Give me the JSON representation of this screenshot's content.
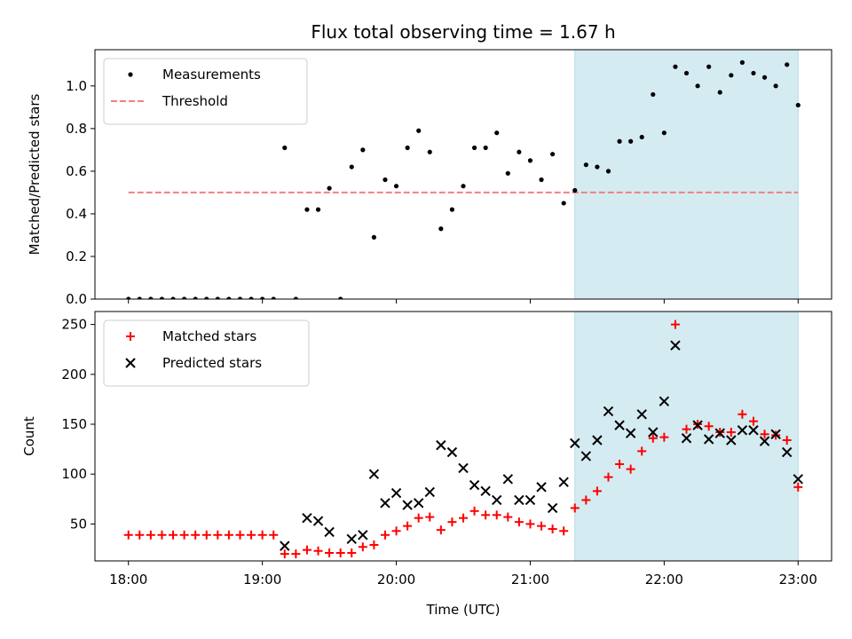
{
  "figure": {
    "title": "Flux total observing time = 1.67 h",
    "xlabel": "Time (UTC)",
    "x_tick_labels": [
      "18:00",
      "19:00",
      "20:00",
      "21:00",
      "22:00",
      "23:00"
    ],
    "highlight_color": "#d4ebf1"
  },
  "chart_data": [
    {
      "type": "scatter",
      "ylabel": "Matched/Predicted stars",
      "xlim": [
        "17:45",
        "23:15"
      ],
      "ylim": [
        0,
        1.17
      ],
      "y_ticks": [
        0.0,
        0.2,
        0.4,
        0.6,
        0.8,
        1.0
      ],
      "y_tick_labels": [
        "0.0",
        "0.2",
        "0.4",
        "0.6",
        "0.8",
        "1.0"
      ],
      "x_ticks": [
        "18:00",
        "19:00",
        "20:00",
        "21:00",
        "22:00",
        "23:00"
      ],
      "highlight_span": [
        "21:20",
        "23:00"
      ],
      "legend_position": "upper-left",
      "threshold": {
        "name": "Threshold",
        "value": 0.5,
        "x_range": [
          "18:00",
          "23:00"
        ],
        "color": "#f08080",
        "style": "dashed"
      },
      "series": [
        {
          "name": "Measurements",
          "color": "#000000",
          "marker": "dot",
          "points": [
            [
              "18:00",
              0
            ],
            [
              "18:05",
              0
            ],
            [
              "18:10",
              0
            ],
            [
              "18:15",
              0
            ],
            [
              "18:20",
              0
            ],
            [
              "18:25",
              0
            ],
            [
              "18:30",
              0
            ],
            [
              "18:35",
              0
            ],
            [
              "18:40",
              0
            ],
            [
              "18:45",
              0
            ],
            [
              "18:50",
              0
            ],
            [
              "18:55",
              0
            ],
            [
              "19:00",
              0
            ],
            [
              "19:05",
              0
            ],
            [
              "19:10",
              0.71
            ],
            [
              "19:15",
              0
            ],
            [
              "19:20",
              0.42
            ],
            [
              "19:25",
              0.42
            ],
            [
              "19:30",
              0.52
            ],
            [
              "19:35",
              0
            ],
            [
              "19:40",
              0.62
            ],
            [
              "19:45",
              0.7
            ],
            [
              "19:50",
              0.29
            ],
            [
              "19:55",
              0.56
            ],
            [
              "20:00",
              0.53
            ],
            [
              "20:05",
              0.71
            ],
            [
              "20:10",
              0.79
            ],
            [
              "20:15",
              0.69
            ],
            [
              "20:20",
              0.33
            ],
            [
              "20:25",
              0.42
            ],
            [
              "20:30",
              0.53
            ],
            [
              "20:35",
              0.71
            ],
            [
              "20:40",
              0.71
            ],
            [
              "20:45",
              0.78
            ],
            [
              "20:50",
              0.59
            ],
            [
              "20:55",
              0.69
            ],
            [
              "21:00",
              0.65
            ],
            [
              "21:05",
              0.56
            ],
            [
              "21:10",
              0.68
            ],
            [
              "21:15",
              0.45
            ],
            [
              "21:20",
              0.51
            ],
            [
              "21:25",
              0.63
            ],
            [
              "21:30",
              0.62
            ],
            [
              "21:35",
              0.6
            ],
            [
              "21:40",
              0.74
            ],
            [
              "21:45",
              0.74
            ],
            [
              "21:50",
              0.76
            ],
            [
              "21:55",
              0.96
            ],
            [
              "22:00",
              0.78
            ],
            [
              "22:05",
              1.09
            ],
            [
              "22:10",
              1.06
            ],
            [
              "22:15",
              1.0
            ],
            [
              "22:20",
              1.09
            ],
            [
              "22:25",
              0.97
            ],
            [
              "22:30",
              1.05
            ],
            [
              "22:35",
              1.11
            ],
            [
              "22:40",
              1.06
            ],
            [
              "22:45",
              1.04
            ],
            [
              "22:50",
              1.0
            ],
            [
              "22:55",
              1.1
            ],
            [
              "23:00",
              0.91
            ]
          ]
        }
      ]
    },
    {
      "type": "scatter",
      "ylabel": "Count",
      "xlim": [
        "17:45",
        "23:15"
      ],
      "ylim": [
        13,
        263
      ],
      "y_ticks": [
        50,
        100,
        150,
        200,
        250
      ],
      "y_tick_labels": [
        "50",
        "100",
        "150",
        "200",
        "250"
      ],
      "x_ticks": [
        "18:00",
        "19:00",
        "20:00",
        "21:00",
        "22:00",
        "23:00"
      ],
      "highlight_span": [
        "21:20",
        "23:00"
      ],
      "legend_position": "upper-left",
      "series": [
        {
          "name": "Matched stars",
          "color": "#ff0000",
          "marker": "plus",
          "points": [
            [
              "18:00",
              39
            ],
            [
              "18:05",
              39
            ],
            [
              "18:10",
              39
            ],
            [
              "18:15",
              39
            ],
            [
              "18:20",
              39
            ],
            [
              "18:25",
              39
            ],
            [
              "18:30",
              39
            ],
            [
              "18:35",
              39
            ],
            [
              "18:40",
              39
            ],
            [
              "18:45",
              39
            ],
            [
              "18:50",
              39
            ],
            [
              "18:55",
              39
            ],
            [
              "19:00",
              39
            ],
            [
              "19:05",
              39
            ],
            [
              "19:10",
              20
            ],
            [
              "19:15",
              20
            ],
            [
              "19:20",
              24
            ],
            [
              "19:25",
              23
            ],
            [
              "19:30",
              21
            ],
            [
              "19:35",
              21
            ],
            [
              "19:40",
              21
            ],
            [
              "19:45",
              27
            ],
            [
              "19:50",
              29
            ],
            [
              "19:55",
              39
            ],
            [
              "20:00",
              43
            ],
            [
              "20:05",
              48
            ],
            [
              "20:10",
              56
            ],
            [
              "20:15",
              57
            ],
            [
              "20:20",
              44
            ],
            [
              "20:25",
              52
            ],
            [
              "20:30",
              56
            ],
            [
              "20:35",
              63
            ],
            [
              "20:40",
              59
            ],
            [
              "20:45",
              59
            ],
            [
              "20:50",
              57
            ],
            [
              "20:55",
              52
            ],
            [
              "21:00",
              50
            ],
            [
              "21:05",
              48
            ],
            [
              "21:10",
              45
            ],
            [
              "21:15",
              43
            ],
            [
              "21:20",
              66
            ],
            [
              "21:25",
              74
            ],
            [
              "21:30",
              83
            ],
            [
              "21:35",
              97
            ],
            [
              "21:40",
              110
            ],
            [
              "21:45",
              105
            ],
            [
              "21:50",
              123
            ],
            [
              "21:55",
              136
            ],
            [
              "22:00",
              137
            ],
            [
              "22:05",
              250
            ],
            [
              "22:10",
              145
            ],
            [
              "22:15",
              150
            ],
            [
              "22:20",
              148
            ],
            [
              "22:25",
              142
            ],
            [
              "22:30",
              142
            ],
            [
              "22:35",
              160
            ],
            [
              "22:40",
              153
            ],
            [
              "22:45",
              140
            ],
            [
              "22:50",
              139
            ],
            [
              "22:55",
              134
            ],
            [
              "23:00",
              87
            ]
          ]
        },
        {
          "name": "Predicted stars",
          "color": "#000000",
          "marker": "x",
          "points": [
            [
              "19:10",
              28
            ],
            [
              "19:20",
              56
            ],
            [
              "19:25",
              53
            ],
            [
              "19:30",
              42
            ],
            [
              "19:40",
              35
            ],
            [
              "19:45",
              39
            ],
            [
              "19:50",
              100
            ],
            [
              "19:55",
              71
            ],
            [
              "20:00",
              81
            ],
            [
              "20:05",
              69
            ],
            [
              "20:10",
              71
            ],
            [
              "20:15",
              82
            ],
            [
              "20:20",
              129
            ],
            [
              "20:25",
              122
            ],
            [
              "20:30",
              106
            ],
            [
              "20:35",
              89
            ],
            [
              "20:40",
              83
            ],
            [
              "20:45",
              74
            ],
            [
              "20:50",
              95
            ],
            [
              "20:55",
              74
            ],
            [
              "21:00",
              74
            ],
            [
              "21:05",
              87
            ],
            [
              "21:10",
              66
            ],
            [
              "21:15",
              92
            ],
            [
              "21:20",
              131
            ],
            [
              "21:25",
              118
            ],
            [
              "21:30",
              134
            ],
            [
              "21:35",
              163
            ],
            [
              "21:40",
              149
            ],
            [
              "21:45",
              141
            ],
            [
              "21:50",
              160
            ],
            [
              "21:55",
              142
            ],
            [
              "22:00",
              173
            ],
            [
              "22:05",
              229
            ],
            [
              "22:10",
              136
            ],
            [
              "22:15",
              149
            ],
            [
              "22:20",
              135
            ],
            [
              "22:25",
              141
            ],
            [
              "22:30",
              134
            ],
            [
              "22:35",
              144
            ],
            [
              "22:40",
              144
            ],
            [
              "22:45",
              133
            ],
            [
              "22:50",
              140
            ],
            [
              "22:55",
              122
            ],
            [
              "23:00",
              95
            ]
          ]
        }
      ]
    }
  ]
}
